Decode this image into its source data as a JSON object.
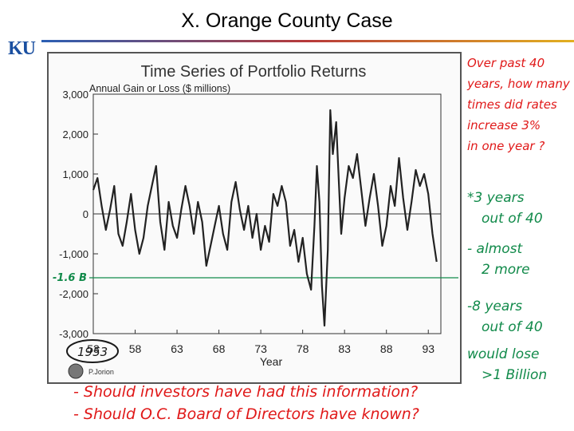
{
  "slide": {
    "title": "X.  Orange County Case",
    "logo": "KU"
  },
  "chart_data": {
    "type": "line",
    "title": "Time Series of Portfolio Returns",
    "ylabel": "Annual Gain or Loss ($ millions)",
    "xlabel": "Year",
    "xlim": [
      1953,
      1994.5
    ],
    "ylim": [
      -3000,
      3000
    ],
    "yticks": [
      3000,
      2000,
      1000,
      0,
      -1000,
      -2000,
      -3000
    ],
    "ytick_labels": [
      "3,000",
      "2,000",
      "1,000",
      "0",
      "-1,000",
      "-2,000",
      "-3,000"
    ],
    "xticks": [
      1953,
      1958,
      1963,
      1968,
      1973,
      1978,
      1983,
      1988,
      1993
    ],
    "xtick_labels": [
      "53",
      "58",
      "63",
      "68",
      "73",
      "78",
      "83",
      "88",
      "93"
    ],
    "grid": false,
    "credit": "P.Jorion",
    "series": [
      {
        "x": [
          1953.0,
          1953.5,
          1954.0,
          1954.5,
          1955.0,
          1955.5,
          1956.0,
          1956.5,
          1957.0,
          1957.5,
          1958.0,
          1958.5,
          1959.0,
          1959.5,
          1960.0,
          1960.5,
          1961.0,
          1961.5,
          1962.0,
          1962.5,
          1963.0,
          1963.5,
          1964.0,
          1964.5,
          1965.0,
          1965.5,
          1966.0,
          1966.5,
          1967.0,
          1967.5,
          1968.0,
          1968.5,
          1969.0,
          1969.5,
          1970.0,
          1970.5,
          1971.0,
          1971.5,
          1972.0,
          1972.5,
          1973.0,
          1973.5,
          1974.0,
          1974.5,
          1975.0,
          1975.5,
          1976.0,
          1976.5,
          1977.0,
          1977.5,
          1978.0,
          1978.5,
          1979.0,
          1979.4,
          1979.7,
          1980.0,
          1980.3,
          1980.6,
          1981.0,
          1981.3,
          1981.6,
          1982.0,
          1982.3,
          1982.6,
          1983.0,
          1983.5,
          1984.0,
          1984.5,
          1985.0,
          1985.5,
          1986.0,
          1986.5,
          1987.0,
          1987.5,
          1988.0,
          1988.5,
          1989.0,
          1989.5,
          1990.0,
          1990.5,
          1991.0,
          1991.5,
          1992.0,
          1992.5,
          1993.0,
          1993.5,
          1994.0
        ],
        "y": [
          600,
          900,
          200,
          -400,
          100,
          700,
          -500,
          -800,
          -200,
          500,
          -400,
          -1000,
          -600,
          200,
          700,
          1200,
          -200,
          -900,
          300,
          -300,
          -600,
          100,
          700,
          200,
          -500,
          300,
          -200,
          -1300,
          -800,
          -300,
          200,
          -500,
          -900,
          300,
          800,
          100,
          -400,
          200,
          -600,
          0,
          -900,
          -300,
          -700,
          500,
          200,
          700,
          300,
          -800,
          -400,
          -1200,
          -600,
          -1500,
          -1900,
          -300,
          1200,
          300,
          -1800,
          -2800,
          -900,
          2600,
          1500,
          2300,
          900,
          -500,
          400,
          1200,
          900,
          1500,
          600,
          -300,
          400,
          1000,
          200,
          -800,
          -300,
          700,
          200,
          1400,
          400,
          -400,
          300,
          1100,
          700,
          1000,
          500,
          -500,
          -1200
        ]
      }
    ],
    "annotations": [
      {
        "text": "-1.6 B",
        "y": -1600
      },
      {
        "text": "1953",
        "x": 1953
      }
    ]
  },
  "notes": {
    "right": [
      {
        "text": "Over past 40",
        "color": "#e01818"
      },
      {
        "text": "years, how many",
        "color": "#e01818"
      },
      {
        "text": "times did rates",
        "color": "#e01818"
      },
      {
        "text": "increase 3%",
        "color": "#e01818"
      },
      {
        "text": "in one year ?",
        "color": "#e01818"
      },
      {
        "text": "*3 years",
        "color": "#118a4a"
      },
      {
        "text": "out of 40",
        "color": "#118a4a"
      },
      {
        "text": "- almost",
        "color": "#118a4a"
      },
      {
        "text": "2 more",
        "color": "#118a4a"
      },
      {
        "text": "-8 years",
        "color": "#118a4a"
      },
      {
        "text": "out of 40",
        "color": "#118a4a"
      },
      {
        "text": "would lose",
        "color": "#118a4a"
      },
      {
        "text": ">1 Billion",
        "color": "#118a4a"
      }
    ],
    "bottom": [
      {
        "text": "- Should investors have had this information?",
        "color": "#e01818"
      },
      {
        "text": "- Should O.C. Board of Directors have known?",
        "color": "#e01818"
      }
    ]
  },
  "colors": {
    "line": "#222222",
    "frame": "#555555",
    "annotation_green": "#118a4a",
    "annotation_red": "#e01818"
  }
}
